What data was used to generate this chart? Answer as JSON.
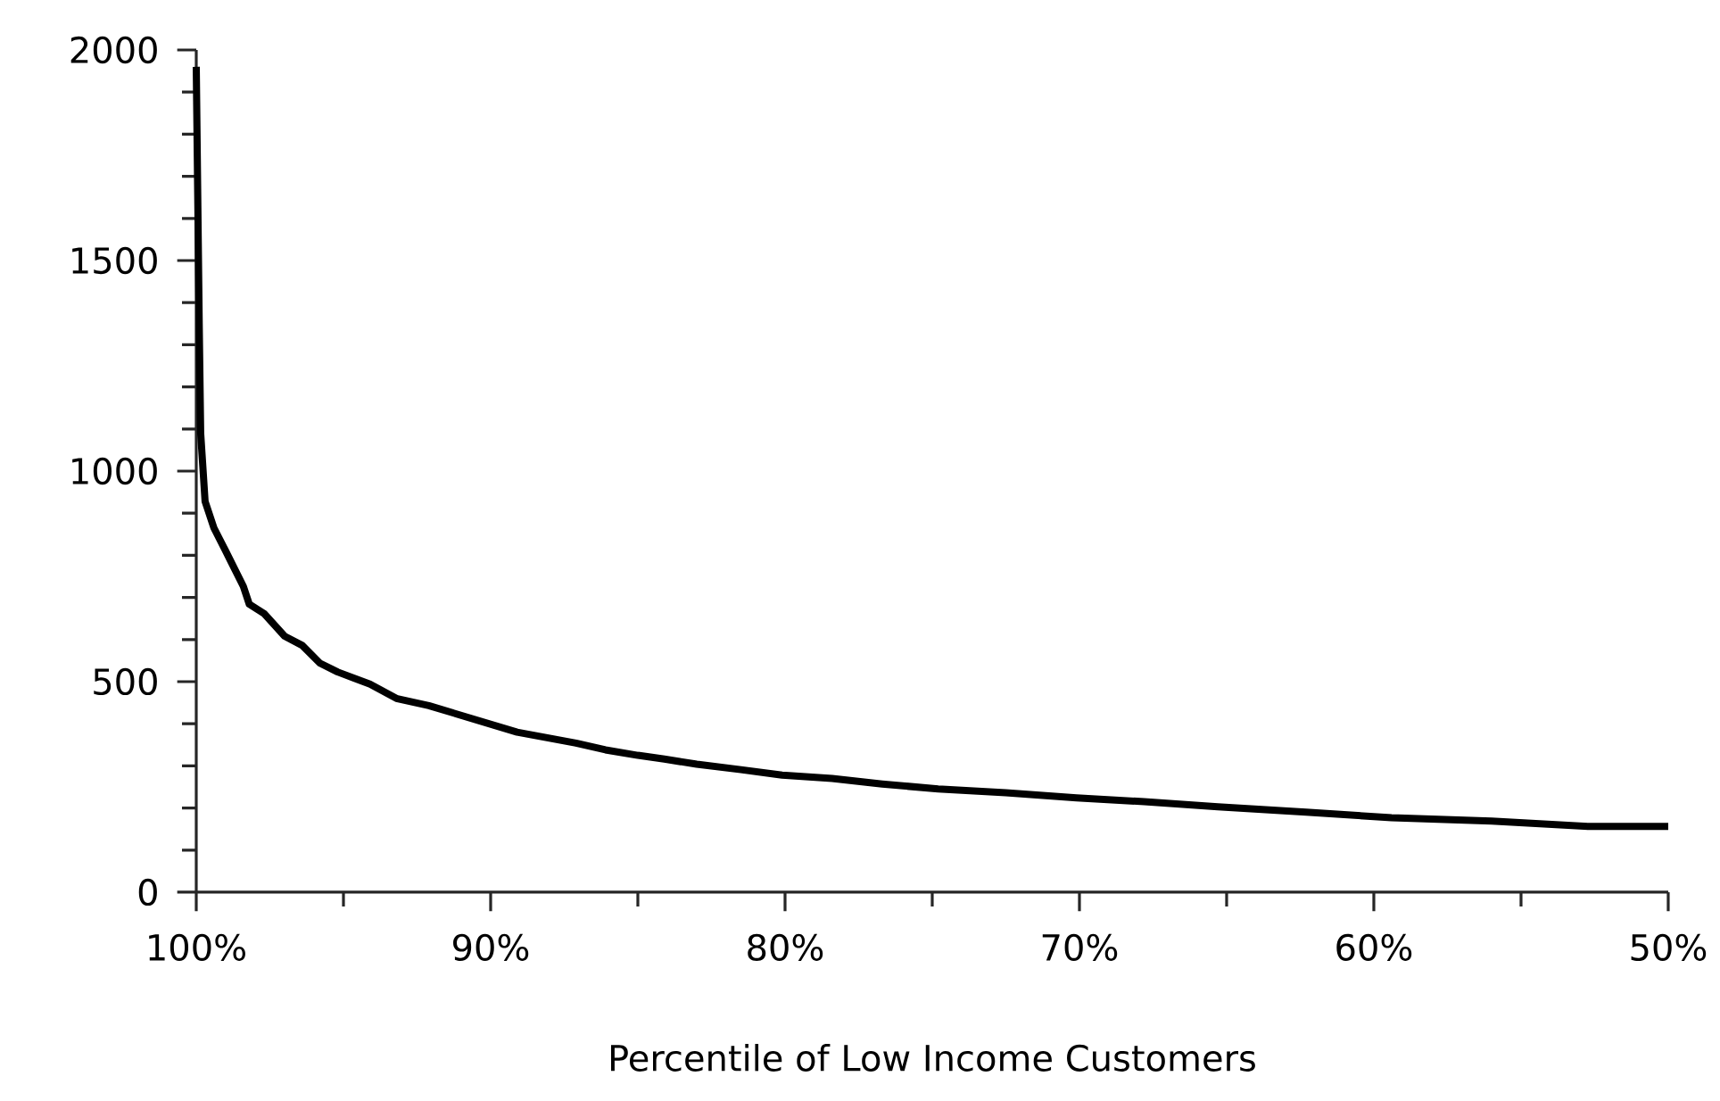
{
  "chart_data": {
    "type": "line",
    "xlabel": "Percentile of Low Income Customers",
    "x": [
      100,
      99.9,
      99.85,
      99.7,
      99.4,
      99.0,
      98.4,
      98.2,
      97.7,
      97.0,
      96.4,
      95.8,
      95.2,
      94.1,
      93.2,
      92.1,
      91.1,
      90.1,
      89.1,
      87.1,
      86.1,
      85.0,
      84.1,
      83.0,
      81.5,
      80.1,
      78.4,
      76.7,
      74.8,
      72.5,
      70.1,
      67.8,
      65.3,
      62.3,
      59.4,
      56.0,
      52.7,
      50
    ],
    "series": [
      {
        "color": "#000000",
        "values": [
          1960,
          1350,
          1090,
          928,
          865,
          810,
          726,
          684,
          662,
          608,
          586,
          544,
          523,
          494,
          460,
          443,
          422,
          401,
          380,
          354,
          338,
          325,
          316,
          304,
          291,
          278,
          270,
          257,
          245,
          236,
          224,
          215,
          203,
          190,
          177,
          169,
          156,
          156
        ]
      }
    ],
    "xlim": [
      100,
      50
    ],
    "xticks": [
      {
        "value": 100,
        "label": "100%"
      },
      {
        "value": 95,
        "label": null
      },
      {
        "value": 90,
        "label": "90%"
      },
      {
        "value": 85,
        "label": null
      },
      {
        "value": 80,
        "label": "80%"
      },
      {
        "value": 75,
        "label": null
      },
      {
        "value": 70,
        "label": "70%"
      },
      {
        "value": 65,
        "label": null
      },
      {
        "value": 60,
        "label": "60%"
      },
      {
        "value": 55,
        "label": null
      },
      {
        "value": 50,
        "label": "50%"
      }
    ],
    "ylim": [
      0,
      2000
    ],
    "yticks": [
      0,
      {
        "value": 100,
        "label": null
      },
      {
        "value": 200,
        "label": null
      },
      {
        "value": 300,
        "label": null
      },
      {
        "value": 400,
        "label": null
      },
      500,
      {
        "value": 600,
        "label": null
      },
      {
        "value": 700,
        "label": null
      },
      {
        "value": 800,
        "label": null
      },
      {
        "value": 900,
        "label": null
      },
      1000,
      {
        "value": 1100,
        "label": null
      },
      {
        "value": 1200,
        "label": null
      },
      {
        "value": 1300,
        "label": null
      },
      {
        "value": 1400,
        "label": null
      },
      1500,
      {
        "value": 1600,
        "label": null
      },
      {
        "value": 1700,
        "label": null
      },
      {
        "value": 1800,
        "label": null
      },
      {
        "value": 1900,
        "label": null
      },
      2000
    ],
    "marker": "none",
    "line_style": "solid"
  }
}
